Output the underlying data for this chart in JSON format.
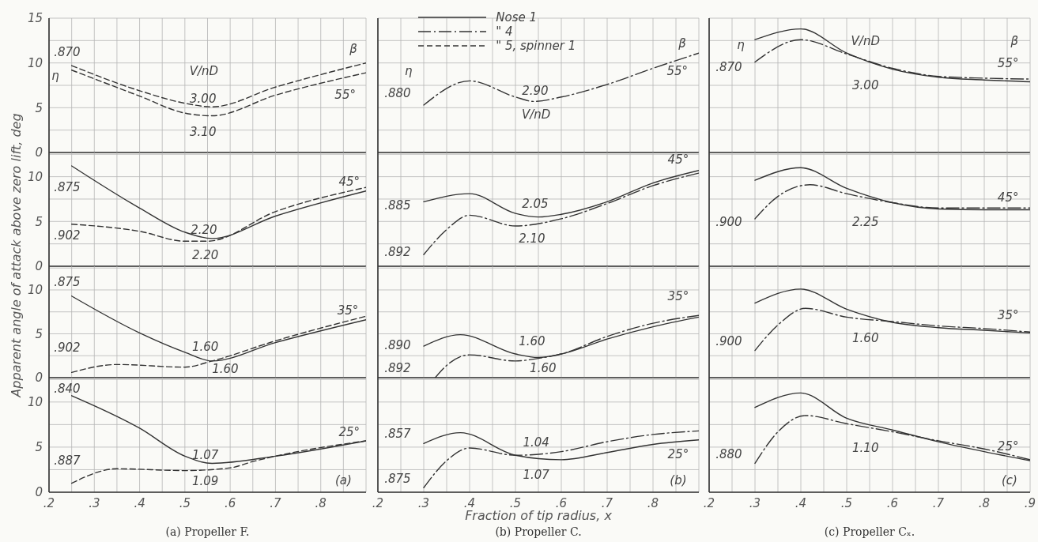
{
  "chart_data": [
    {
      "type": "line",
      "ylabel": "Apparent angle of attack above zero lift, deg",
      "xlim": [
        0.2,
        0.9
      ],
      "ylim": [
        0,
        15
      ],
      "tick_labels": "y",
      "grid": true,
      "xticks": [
        {
          "value": 0.2,
          "label": null
        },
        {
          "value": 0.25,
          "label": null
        },
        {
          "value": 0.3,
          "label": null
        },
        {
          "value": 0.35,
          "label": null
        },
        {
          "value": 0.4,
          "label": null
        },
        {
          "value": 0.45,
          "label": null
        },
        {
          "value": 0.5,
          "label": null
        },
        {
          "value": 0.55,
          "label": null
        },
        {
          "value": 0.6,
          "label": null
        },
        {
          "value": 0.65,
          "label": null
        },
        {
          "value": 0.7,
          "label": null
        },
        {
          "value": 0.75,
          "label": null
        },
        {
          "value": 0.8,
          "label": null
        },
        {
          "value": 0.85,
          "label": null
        },
        {
          "value": 0.9,
          "label": null
        }
      ],
      "yticks": [
        0,
        {
          "value": 2.5,
          "label": null
        },
        5,
        {
          "value": 7.5,
          "label": null
        },
        10,
        {
          "value": 12.5,
          "label": null
        },
        15
      ],
      "series": [
        {
          "color": "#333333",
          "line_style": "dashed",
          "x": [
            0.25,
            0.4,
            0.5,
            0.56,
            0.7,
            0.9
          ],
          "values": [
            9.7,
            6.9,
            5.5,
            5.1,
            7.3,
            10.0
          ]
        },
        {
          "color": "#333333",
          "line_style": "dashed",
          "x": [
            0.25,
            0.4,
            0.5,
            0.56,
            0.7,
            0.9
          ],
          "values": [
            9.2,
            6.3,
            4.4,
            4.1,
            6.4,
            8.9
          ]
        }
      ],
      "annotations": [
        ".870",
        "η",
        "V/nD",
        "3.00",
        "3.10",
        "β",
        "55°"
      ]
    },
    {
      "type": "line",
      "xlim": [
        0.2,
        0.9
      ],
      "ylim": [
        0,
        15
      ],
      "tick_labels": false,
      "grid": true,
      "legend": "top left",
      "xticks": [
        {
          "value": 0.2,
          "label": null
        },
        {
          "value": 0.25,
          "label": null
        },
        {
          "value": 0.3,
          "label": null
        },
        {
          "value": 0.35,
          "label": null
        },
        {
          "value": 0.4,
          "label": null
        },
        {
          "value": 0.45,
          "label": null
        },
        {
          "value": 0.5,
          "label": null
        },
        {
          "value": 0.55,
          "label": null
        },
        {
          "value": 0.6,
          "label": null
        },
        {
          "value": 0.65,
          "label": null
        },
        {
          "value": 0.7,
          "label": null
        },
        {
          "value": 0.75,
          "label": null
        },
        {
          "value": 0.8,
          "label": null
        },
        {
          "value": 0.85,
          "label": null
        },
        {
          "value": 0.9,
          "label": null
        }
      ],
      "yticks": [
        {
          "value": 0,
          "label": null
        },
        {
          "value": 2.5,
          "label": null
        },
        {
          "value": 5,
          "label": null
        },
        {
          "value": 7.5,
          "label": null
        },
        {
          "value": 10,
          "label": null
        },
        {
          "value": 12.5,
          "label": null
        },
        {
          "value": 15,
          "label": null
        }
      ],
      "series": [
        {
          "name": "Nose 1",
          "color": "#333333",
          "line_style": "solid"
        },
        {
          "name": "\" 4",
          "color": "#333333",
          "line_style": "dashdot",
          "x": [
            0.3,
            0.4,
            0.5,
            0.54,
            0.6,
            0.7,
            0.8,
            0.9
          ],
          "values": [
            5.3,
            8.0,
            6.2,
            5.7,
            6.2,
            7.6,
            9.4,
            11.1
          ]
        },
        {
          "name": "\" 5, spinner 1",
          "color": "#333333",
          "line_style": "dashed"
        }
      ],
      "annotations": [
        ".880",
        "η",
        "2.90",
        "V/nD",
        "β",
        "55°"
      ]
    },
    {
      "type": "line",
      "xlim": [
        0.2,
        0.9
      ],
      "ylim": [
        0,
        15
      ],
      "tick_labels": false,
      "grid": true,
      "xticks": [
        {
          "value": 0.2,
          "label": null
        },
        {
          "value": 0.25,
          "label": null
        },
        {
          "value": 0.3,
          "label": null
        },
        {
          "value": 0.35,
          "label": null
        },
        {
          "value": 0.4,
          "label": null
        },
        {
          "value": 0.45,
          "label": null
        },
        {
          "value": 0.5,
          "label": null
        },
        {
          "value": 0.55,
          "label": null
        },
        {
          "value": 0.6,
          "label": null
        },
        {
          "value": 0.65,
          "label": null
        },
        {
          "value": 0.7,
          "label": null
        },
        {
          "value": 0.75,
          "label": null
        },
        {
          "value": 0.8,
          "label": null
        },
        {
          "value": 0.85,
          "label": null
        },
        {
          "value": 0.9,
          "label": null
        }
      ],
      "yticks": [
        {
          "value": 0,
          "label": null
        },
        {
          "value": 2.5,
          "label": null
        },
        {
          "value": 5,
          "label": null
        },
        {
          "value": 7.5,
          "label": null
        },
        {
          "value": 10,
          "label": null
        },
        {
          "value": 12.5,
          "label": null
        },
        {
          "value": 15,
          "label": null
        }
      ],
      "series": [
        {
          "color": "#333333",
          "line_style": "solid",
          "x": [
            0.3,
            0.4,
            0.5,
            0.6,
            0.7,
            0.8,
            0.9
          ],
          "values": [
            12.6,
            13.8,
            11.1,
            9.3,
            8.4,
            8.1,
            7.9
          ]
        },
        {
          "color": "#333333",
          "line_style": "dashdot",
          "x": [
            0.3,
            0.4,
            0.5,
            0.6,
            0.7,
            0.8,
            0.9
          ],
          "values": [
            10.1,
            12.6,
            11.0,
            9.4,
            8.5,
            8.3,
            8.2
          ]
        }
      ],
      "annotations": [
        "η",
        ".870",
        "V/nD",
        "3.00",
        "β",
        "55°"
      ]
    },
    {
      "type": "line",
      "xlim": [
        0.2,
        0.9
      ],
      "ylim": [
        0,
        12.7
      ],
      "tick_labels": "y",
      "grid": true,
      "xticks": [
        {
          "value": 0.2,
          "label": null
        },
        {
          "value": 0.25,
          "label": null
        },
        {
          "value": 0.3,
          "label": null
        },
        {
          "value": 0.35,
          "label": null
        },
        {
          "value": 0.4,
          "label": null
        },
        {
          "value": 0.45,
          "label": null
        },
        {
          "value": 0.5,
          "label": null
        },
        {
          "value": 0.55,
          "label": null
        },
        {
          "value": 0.6,
          "label": null
        },
        {
          "value": 0.65,
          "label": null
        },
        {
          "value": 0.7,
          "label": null
        },
        {
          "value": 0.75,
          "label": null
        },
        {
          "value": 0.8,
          "label": null
        },
        {
          "value": 0.85,
          "label": null
        },
        {
          "value": 0.9,
          "label": null
        }
      ],
      "yticks": [
        0,
        {
          "value": 2.5,
          "label": null
        },
        5,
        {
          "value": 7.5,
          "label": null
        },
        10,
        {
          "value": 12.5,
          "label": null
        }
      ],
      "series": [
        {
          "color": "#333333",
          "line_style": "solid",
          "x": [
            0.25,
            0.4,
            0.5,
            0.56,
            0.7,
            0.9
          ],
          "values": [
            11.2,
            6.5,
            3.8,
            3.1,
            5.6,
            8.4
          ]
        },
        {
          "color": "#333333",
          "line_style": "dashed",
          "x": [
            0.25,
            0.4,
            0.5,
            0.55,
            0.7,
            0.9
          ],
          "values": [
            4.7,
            3.9,
            2.8,
            2.8,
            6.1,
            8.8
          ]
        }
      ],
      "annotations": [
        ".875",
        ".902",
        "2.20",
        "2.20",
        "45°"
      ]
    },
    {
      "type": "line",
      "xlim": [
        0.2,
        0.9
      ],
      "ylim": [
        0,
        12.7
      ],
      "tick_labels": false,
      "grid": true,
      "xticks": [
        {
          "value": 0.2,
          "label": null
        },
        {
          "value": 0.25,
          "label": null
        },
        {
          "value": 0.3,
          "label": null
        },
        {
          "value": 0.35,
          "label": null
        },
        {
          "value": 0.4,
          "label": null
        },
        {
          "value": 0.45,
          "label": null
        },
        {
          "value": 0.5,
          "label": null
        },
        {
          "value": 0.55,
          "label": null
        },
        {
          "value": 0.6,
          "label": null
        },
        {
          "value": 0.65,
          "label": null
        },
        {
          "value": 0.7,
          "label": null
        },
        {
          "value": 0.75,
          "label": null
        },
        {
          "value": 0.8,
          "label": null
        },
        {
          "value": 0.85,
          "label": null
        },
        {
          "value": 0.9,
          "label": null
        }
      ],
      "yticks": [
        {
          "value": 0,
          "label": null
        },
        {
          "value": 2.5,
          "label": null
        },
        {
          "value": 5,
          "label": null
        },
        {
          "value": 7.5,
          "label": null
        },
        {
          "value": 10,
          "label": null
        },
        {
          "value": 12.5,
          "label": null
        }
      ],
      "series": [
        {
          "color": "#333333",
          "line_style": "solid",
          "x": [
            0.3,
            0.4,
            0.5,
            0.55,
            0.6,
            0.7,
            0.8,
            0.9
          ],
          "values": [
            7.2,
            8.1,
            5.9,
            5.5,
            5.8,
            7.2,
            9.3,
            10.7
          ]
        },
        {
          "color": "#333333",
          "line_style": "dashdot",
          "x": [
            0.3,
            0.35,
            0.4,
            0.5,
            0.6,
            0.7,
            0.8,
            0.9
          ],
          "values": [
            1.3,
            4.1,
            5.7,
            4.5,
            5.3,
            7.0,
            9.0,
            10.4
          ]
        }
      ],
      "annotations": [
        ".885",
        ".892",
        "2.05",
        "2.10",
        "45°"
      ]
    },
    {
      "type": "line",
      "xlim": [
        0.2,
        0.9
      ],
      "ylim": [
        0,
        12.7
      ],
      "tick_labels": false,
      "grid": true,
      "xticks": [
        {
          "value": 0.2,
          "label": null
        },
        {
          "value": 0.25,
          "label": null
        },
        {
          "value": 0.3,
          "label": null
        },
        {
          "value": 0.35,
          "label": null
        },
        {
          "value": 0.4,
          "label": null
        },
        {
          "value": 0.45,
          "label": null
        },
        {
          "value": 0.5,
          "label": null
        },
        {
          "value": 0.55,
          "label": null
        },
        {
          "value": 0.6,
          "label": null
        },
        {
          "value": 0.65,
          "label": null
        },
        {
          "value": 0.7,
          "label": null
        },
        {
          "value": 0.75,
          "label": null
        },
        {
          "value": 0.8,
          "label": null
        },
        {
          "value": 0.85,
          "label": null
        },
        {
          "value": 0.9,
          "label": null
        }
      ],
      "yticks": [
        {
          "value": 0,
          "label": null
        },
        {
          "value": 2.5,
          "label": null
        },
        {
          "value": 5,
          "label": null
        },
        {
          "value": 7.5,
          "label": null
        },
        {
          "value": 10,
          "label": null
        },
        {
          "value": 12.5,
          "label": null
        }
      ],
      "series": [
        {
          "color": "#333333",
          "line_style": "solid",
          "x": [
            0.3,
            0.4,
            0.5,
            0.6,
            0.7,
            0.8,
            0.9
          ],
          "values": [
            9.6,
            11.0,
            8.7,
            7.1,
            6.4,
            6.3,
            6.3
          ]
        },
        {
          "color": "#333333",
          "line_style": "dashdot",
          "x": [
            0.3,
            0.35,
            0.42,
            0.5,
            0.6,
            0.7,
            0.8,
            0.9
          ],
          "values": [
            5.3,
            7.8,
            9.1,
            8.1,
            7.1,
            6.5,
            6.5,
            6.5
          ]
        }
      ],
      "annotations": [
        ".900",
        "2.25",
        "45°"
      ]
    },
    {
      "type": "line",
      "xlim": [
        0.2,
        0.9
      ],
      "ylim": [
        0,
        12.7
      ],
      "tick_labels": "y",
      "grid": true,
      "xticks": [
        {
          "value": 0.2,
          "label": null
        },
        {
          "value": 0.25,
          "label": null
        },
        {
          "value": 0.3,
          "label": null
        },
        {
          "value": 0.35,
          "label": null
        },
        {
          "value": 0.4,
          "label": null
        },
        {
          "value": 0.45,
          "label": null
        },
        {
          "value": 0.5,
          "label": null
        },
        {
          "value": 0.55,
          "label": null
        },
        {
          "value": 0.6,
          "label": null
        },
        {
          "value": 0.65,
          "label": null
        },
        {
          "value": 0.7,
          "label": null
        },
        {
          "value": 0.75,
          "label": null
        },
        {
          "value": 0.8,
          "label": null
        },
        {
          "value": 0.85,
          "label": null
        },
        {
          "value": 0.9,
          "label": null
        }
      ],
      "yticks": [
        0,
        {
          "value": 2.5,
          "label": null
        },
        5,
        {
          "value": 7.5,
          "label": null
        },
        10,
        {
          "value": 12.5,
          "label": null
        }
      ],
      "series": [
        {
          "color": "#333333",
          "line_style": "solid",
          "x": [
            0.25,
            0.4,
            0.5,
            0.56,
            0.7,
            0.9
          ],
          "values": [
            9.3,
            5.1,
            2.9,
            1.9,
            4.0,
            6.6
          ]
        },
        {
          "color": "#333333",
          "line_style": "dashed",
          "x": [
            0.25,
            0.35,
            0.5,
            0.56,
            0.7,
            0.9
          ],
          "values": [
            0.6,
            1.5,
            1.2,
            1.9,
            4.2,
            7.0
          ]
        }
      ],
      "annotations": [
        ".875",
        ".902",
        "1.60",
        "1.60",
        "35°"
      ]
    },
    {
      "type": "line",
      "xlim": [
        0.2,
        0.9
      ],
      "ylim": [
        0,
        12.7
      ],
      "tick_labels": false,
      "grid": true,
      "xticks": [
        {
          "value": 0.2,
          "label": null
        },
        {
          "value": 0.25,
          "label": null
        },
        {
          "value": 0.3,
          "label": null
        },
        {
          "value": 0.35,
          "label": null
        },
        {
          "value": 0.4,
          "label": null
        },
        {
          "value": 0.45,
          "label": null
        },
        {
          "value": 0.5,
          "label": null
        },
        {
          "value": 0.55,
          "label": null
        },
        {
          "value": 0.6,
          "label": null
        },
        {
          "value": 0.65,
          "label": null
        },
        {
          "value": 0.7,
          "label": null
        },
        {
          "value": 0.75,
          "label": null
        },
        {
          "value": 0.8,
          "label": null
        },
        {
          "value": 0.85,
          "label": null
        },
        {
          "value": 0.9,
          "label": null
        }
      ],
      "yticks": [
        {
          "value": 0,
          "label": null
        },
        {
          "value": 2.5,
          "label": null
        },
        {
          "value": 5,
          "label": null
        },
        {
          "value": 7.5,
          "label": null
        },
        {
          "value": 10,
          "label": null
        },
        {
          "value": 12.5,
          "label": null
        }
      ],
      "series": [
        {
          "color": "#333333",
          "line_style": "solid",
          "x": [
            0.3,
            0.38,
            0.5,
            0.55,
            0.6,
            0.7,
            0.8,
            0.9
          ],
          "values": [
            3.6,
            4.9,
            2.7,
            2.3,
            2.7,
            4.4,
            5.8,
            6.9
          ]
        },
        {
          "color": "#333333",
          "line_style": "dashdot",
          "x": [
            0.325,
            0.35,
            0.4,
            0.5,
            0.55,
            0.6,
            0.7,
            0.8,
            0.9
          ],
          "values": [
            0,
            1.4,
            2.6,
            1.9,
            2.2,
            2.7,
            4.7,
            6.2,
            7.1
          ]
        }
      ],
      "annotations": [
        ".890",
        ".892",
        "1.60",
        "1.60",
        "35°"
      ]
    },
    {
      "type": "line",
      "xlim": [
        0.2,
        0.9
      ],
      "ylim": [
        0,
        12.7
      ],
      "tick_labels": false,
      "grid": true,
      "xticks": [
        {
          "value": 0.2,
          "label": null
        },
        {
          "value": 0.25,
          "label": null
        },
        {
          "value": 0.3,
          "label": null
        },
        {
          "value": 0.35,
          "label": null
        },
        {
          "value": 0.4,
          "label": null
        },
        {
          "value": 0.45,
          "label": null
        },
        {
          "value": 0.5,
          "label": null
        },
        {
          "value": 0.55,
          "label": null
        },
        {
          "value": 0.6,
          "label": null
        },
        {
          "value": 0.65,
          "label": null
        },
        {
          "value": 0.7,
          "label": null
        },
        {
          "value": 0.75,
          "label": null
        },
        {
          "value": 0.8,
          "label": null
        },
        {
          "value": 0.85,
          "label": null
        },
        {
          "value": 0.9,
          "label": null
        }
      ],
      "yticks": [
        {
          "value": 0,
          "label": null
        },
        {
          "value": 2.5,
          "label": null
        },
        {
          "value": 5,
          "label": null
        },
        {
          "value": 7.5,
          "label": null
        },
        {
          "value": 10,
          "label": null
        },
        {
          "value": 12.5,
          "label": null
        }
      ],
      "series": [
        {
          "color": "#333333",
          "line_style": "solid",
          "x": [
            0.3,
            0.4,
            0.5,
            0.6,
            0.7,
            0.8,
            0.9
          ],
          "values": [
            8.5,
            10.1,
            7.8,
            6.3,
            5.7,
            5.4,
            5.1
          ]
        },
        {
          "color": "#333333",
          "line_style": "dashdot",
          "x": [
            0.3,
            0.35,
            0.41,
            0.5,
            0.6,
            0.7,
            0.8,
            0.9
          ],
          "values": [
            3.1,
            6.0,
            7.9,
            6.9,
            6.4,
            5.9,
            5.6,
            5.2
          ]
        }
      ],
      "annotations": [
        ".900",
        "1.60",
        "35°"
      ]
    },
    {
      "type": "line",
      "title": "(a)  Propeller F.",
      "xlim": [
        0.2,
        0.9
      ],
      "ylim": [
        0,
        12.7
      ],
      "grid": true,
      "xticks": [
        {
          "value": 0.2,
          "label": ".2"
        },
        {
          "value": 0.25,
          "label": null
        },
        {
          "value": 0.3,
          "label": ".3"
        },
        {
          "value": 0.35,
          "label": null
        },
        {
          "value": 0.4,
          "label": ".4"
        },
        {
          "value": 0.45,
          "label": null
        },
        {
          "value": 0.5,
          "label": ".5"
        },
        {
          "value": 0.55,
          "label": null
        },
        {
          "value": 0.6,
          "label": ".6"
        },
        {
          "value": 0.65,
          "label": null
        },
        {
          "value": 0.7,
          "label": ".7"
        },
        {
          "value": 0.75,
          "label": null
        },
        {
          "value": 0.8,
          "label": ".8"
        },
        {
          "value": 0.85,
          "label": null
        },
        {
          "value": 0.9,
          "label": null
        }
      ],
      "yticks": [
        0,
        {
          "value": 2.5,
          "label": null
        },
        5,
        {
          "value": 7.5,
          "label": null
        },
        10,
        {
          "value": 12.5,
          "label": null
        }
      ],
      "series": [
        {
          "color": "#333333",
          "line_style": "solid",
          "x": [
            0.25,
            0.4,
            0.5,
            0.56,
            0.7,
            0.9
          ],
          "values": [
            10.7,
            7.1,
            4.0,
            3.2,
            4.0,
            5.7
          ]
        },
        {
          "color": "#333333",
          "line_style": "dashed",
          "x": [
            0.25,
            0.35,
            0.5,
            0.6,
            0.65,
            0.9
          ],
          "values": [
            1.0,
            2.6,
            2.4,
            2.7,
            3.4,
            5.7
          ]
        }
      ],
      "annotations": [
        ".840",
        ".887",
        "1.07",
        "1.09",
        "25°",
        "(a)"
      ]
    },
    {
      "type": "line",
      "title": "(b)  Propeller C.",
      "xlabel": "Fraction of tip radius, x",
      "xlim": [
        0.2,
        0.9
      ],
      "ylim": [
        0,
        12.7
      ],
      "tick_labels": "x",
      "grid": true,
      "xticks": [
        {
          "value": 0.2,
          "label": ".2"
        },
        {
          "value": 0.25,
          "label": null
        },
        {
          "value": 0.3,
          "label": ".3"
        },
        {
          "value": 0.35,
          "label": null
        },
        {
          "value": 0.4,
          "label": ".4"
        },
        {
          "value": 0.45,
          "label": null
        },
        {
          "value": 0.5,
          "label": ".5"
        },
        {
          "value": 0.55,
          "label": null
        },
        {
          "value": 0.6,
          "label": ".6"
        },
        {
          "value": 0.65,
          "label": null
        },
        {
          "value": 0.7,
          "label": ".7"
        },
        {
          "value": 0.75,
          "label": null
        },
        {
          "value": 0.8,
          "label": ".8"
        },
        {
          "value": 0.85,
          "label": null
        },
        {
          "value": 0.9,
          "label": null
        }
      ],
      "yticks": [
        {
          "value": 0,
          "label": null
        },
        {
          "value": 2.5,
          "label": null
        },
        {
          "value": 5,
          "label": null
        },
        {
          "value": 7.5,
          "label": null
        },
        {
          "value": 10,
          "label": null
        },
        {
          "value": 12.5,
          "label": null
        }
      ],
      "series": [
        {
          "color": "#333333",
          "line_style": "solid",
          "x": [
            0.3,
            0.38,
            0.5,
            0.6,
            0.7,
            0.8,
            0.9
          ],
          "values": [
            5.4,
            6.6,
            4.1,
            3.6,
            4.4,
            5.3,
            5.8
          ]
        },
        {
          "color": "#333333",
          "line_style": "dashdot",
          "x": [
            0.3,
            0.35,
            0.4,
            0.5,
            0.6,
            0.7,
            0.8,
            0.9
          ],
          "values": [
            0.5,
            3.5,
            4.9,
            4.1,
            4.5,
            5.6,
            6.4,
            6.8
          ]
        }
      ],
      "annotations": [
        ".857",
        ".875",
        "1.04",
        "1.07",
        "25°",
        "(b)"
      ]
    },
    {
      "type": "line",
      "title": "(c)  Propeller Cₓ.",
      "xlim": [
        0.2,
        0.9
      ],
      "ylim": [
        0,
        12.7
      ],
      "tick_labels": "x",
      "grid": true,
      "xticks": [
        {
          "value": 0.2,
          "label": ".2"
        },
        {
          "value": 0.25,
          "label": null
        },
        {
          "value": 0.3,
          "label": ".3"
        },
        {
          "value": 0.35,
          "label": null
        },
        {
          "value": 0.4,
          "label": ".4"
        },
        {
          "value": 0.45,
          "label": null
        },
        {
          "value": 0.5,
          "label": ".5"
        },
        {
          "value": 0.55,
          "label": null
        },
        {
          "value": 0.6,
          "label": ".6"
        },
        {
          "value": 0.65,
          "label": null
        },
        {
          "value": 0.7,
          "label": ".7"
        },
        {
          "value": 0.75,
          "label": null
        },
        {
          "value": 0.8,
          "label": ".8"
        },
        {
          "value": 0.85,
          "label": null
        },
        {
          "value": 0.9,
          "label": ".9"
        }
      ],
      "yticks": [
        {
          "value": 0,
          "label": null
        },
        {
          "value": 2.5,
          "label": null
        },
        {
          "value": 5,
          "label": null
        },
        {
          "value": 7.5,
          "label": null
        },
        {
          "value": 10,
          "label": null
        },
        {
          "value": 12.5,
          "label": null
        }
      ],
      "series": [
        {
          "color": "#333333",
          "line_style": "solid",
          "x": [
            0.3,
            0.4,
            0.5,
            0.6,
            0.7,
            0.8,
            0.9
          ],
          "values": [
            9.4,
            11.0,
            8.2,
            6.9,
            5.6,
            4.5,
            3.5
          ]
        },
        {
          "color": "#333333",
          "line_style": "dashdot",
          "x": [
            0.3,
            0.35,
            0.41,
            0.5,
            0.6,
            0.7,
            0.8,
            0.9
          ],
          "values": [
            3.2,
            6.7,
            8.5,
            7.6,
            6.7,
            5.7,
            4.8,
            3.6
          ]
        }
      ],
      "annotations": [
        ".880",
        "1.10",
        "25°",
        "(c)"
      ]
    }
  ]
}
